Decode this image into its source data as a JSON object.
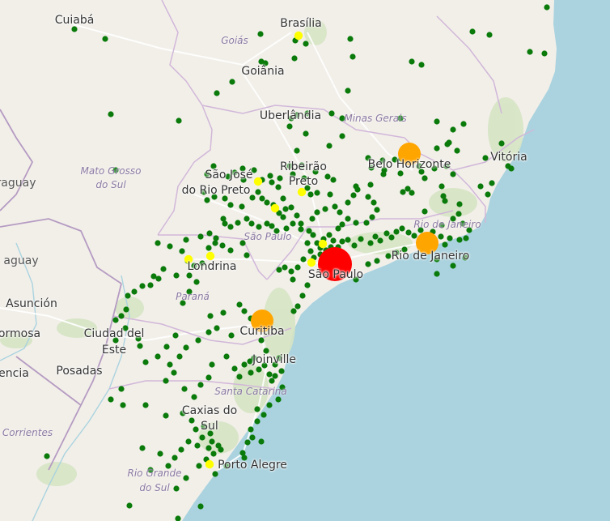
{
  "map": {
    "colors": {
      "land": "#f2efe9",
      "ocean": "#aad3df",
      "forest": "#d6e4c4",
      "state_border": "#d1b7d9",
      "country_border": "#b59bc2",
      "road": "#ffffff",
      "small_marker": "#0a7a0a",
      "medium_marker": "#ffff00",
      "large_marker": "#ffa500",
      "largest_marker": "#ff0000"
    },
    "marker_tiers": {
      "small": "green",
      "medium": "yellow",
      "large": "orange",
      "largest": "red"
    }
  },
  "labels": {
    "cities": {
      "cuiaba": "Cuiabá",
      "brasilia": "Brasília",
      "goiania": "Goiânia",
      "uberlandia": "Uberlândia",
      "ribeirao1": "Ribeirão",
      "ribeirao2": "Preto",
      "sjrp1": "São José",
      "sjrp2": "do Rio Preto",
      "belo_horizonte": "Belo Horizonte",
      "vitoria": "Vitória",
      "rio_de_janeiro": "Rio de Janeiro",
      "sao_paulo": "São Paulo",
      "londrina": "Londrina",
      "curitiba": "Curitiba",
      "joinville": "Joinville",
      "caxias1": "Caxias do",
      "caxias2": "Sul",
      "porto_alegre": "Porto Alegre",
      "asuncion": "Asunción",
      "ciudad_del_este1": "Ciudad del",
      "ciudad_del_este2": "Este",
      "posadas": "Posadas",
      "formosa": "ormosa",
      "encia": "encia",
      "corrientes": "Corrientes"
    },
    "states": {
      "goias": "Goiás",
      "minas_gerais": "Minas Gerais",
      "mato_grosso_do_sul1": "Mato Grosso",
      "mato_grosso_do_sul2": "do Sul",
      "sao_paulo": "São Paulo",
      "rio_de_janeiro": "Rio de Janeiro",
      "parana": "Paraná",
      "santa_catarina": "Santa Catarina",
      "rio_grande_do_sul1": "Rio Grande",
      "rio_grande_do_sul2": "do Sul"
    },
    "countries": {
      "paraguay_top": "raguay",
      "paraguay": "aguay"
    }
  }
}
